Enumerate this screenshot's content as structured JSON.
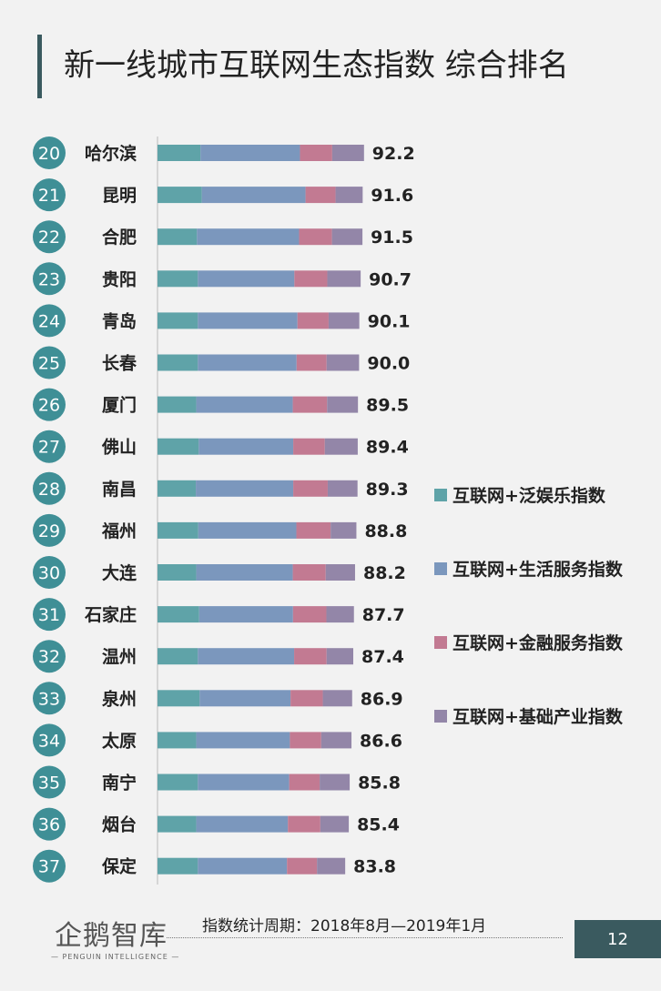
{
  "title": "新一线城市互联网生态指数 综合排名",
  "colors": {
    "entertainment": "#5fa3a8",
    "life": "#7b97bd",
    "finance": "#c27a92",
    "industry": "#9386a8",
    "badge": "#3f8f96",
    "accent": "#3a5a5f"
  },
  "legend": [
    {
      "label": "互联网+泛娱乐指数",
      "color": "#5fa3a8",
      "icon": "teal-square-icon"
    },
    {
      "label": "互联网+生活服务指数",
      "color": "#7b97bd",
      "icon": "blue-square-icon"
    },
    {
      "label": "互联网+金融服务指数",
      "color": "#c27a92",
      "icon": "pink-square-icon"
    },
    {
      "label": "互联网+基础产业指数",
      "color": "#9386a8",
      "icon": "purple-square-icon"
    }
  ],
  "chart_data": {
    "type": "bar",
    "orientation": "horizontal",
    "stacked": true,
    "title": "新一线城市互联网生态指数 综合排名",
    "ranks": [
      "20",
      "21",
      "22",
      "23",
      "24",
      "25",
      "26",
      "27",
      "28",
      "29",
      "30",
      "31",
      "32",
      "33",
      "34",
      "35",
      "36",
      "37"
    ],
    "categories": [
      "哈尔滨",
      "昆明",
      "合肥",
      "贵阳",
      "青岛",
      "长春",
      "厦门",
      "佛山",
      "南昌",
      "福州",
      "大连",
      "石家庄",
      "温州",
      "泉州",
      "太原",
      "南宁",
      "烟台",
      "保定"
    ],
    "totals": [
      "92.2",
      "91.6",
      "91.5",
      "90.7",
      "90.1",
      "90.0",
      "89.5",
      "89.4",
      "89.3",
      "88.8",
      "88.2",
      "87.7",
      "87.4",
      "86.9",
      "86.6",
      "85.8",
      "85.4",
      "83.8"
    ],
    "series": [
      {
        "name": "互联网+泛娱乐指数",
        "values": [
          19.2,
          19.8,
          17.6,
          18.0,
          18.0,
          18.0,
          17.3,
          18.4,
          17.1,
          18.2,
          17.3,
          18.6,
          18.0,
          18.8,
          17.3,
          18.0,
          17.3,
          18.0
        ]
      },
      {
        "name": "互联网+生活服务指数",
        "values": [
          44.4,
          46.3,
          45.6,
          43.1,
          44.5,
          44.1,
          43.1,
          42.2,
          43.5,
          43.8,
          43.1,
          41.9,
          43.0,
          40.6,
          41.8,
          40.8,
          40.9,
          39.8
        ]
      },
      {
        "name": "互联网+金融服务指数",
        "values": [
          14.4,
          13.4,
          14.7,
          14.7,
          13.9,
          13.4,
          15.3,
          14.1,
          15.4,
          15.3,
          14.7,
          14.9,
          14.5,
          14.4,
          14.0,
          13.6,
          14.5,
          13.4
        ]
      },
      {
        "name": "互联网+基础产业指数",
        "values": [
          14.2,
          12.1,
          13.6,
          14.9,
          13.7,
          14.5,
          13.8,
          14.7,
          13.3,
          11.5,
          13.1,
          12.3,
          11.9,
          13.1,
          13.5,
          13.4,
          12.7,
          12.6
        ]
      }
    ],
    "xlim": [
      0,
      100
    ]
  },
  "footer": {
    "note": "指数统计周期：2018年8月—2019年1月",
    "logo_text": "企鹅智库",
    "logo_sub": "— PENGUIN INTELLIGENCE —",
    "page_number": "12"
  }
}
